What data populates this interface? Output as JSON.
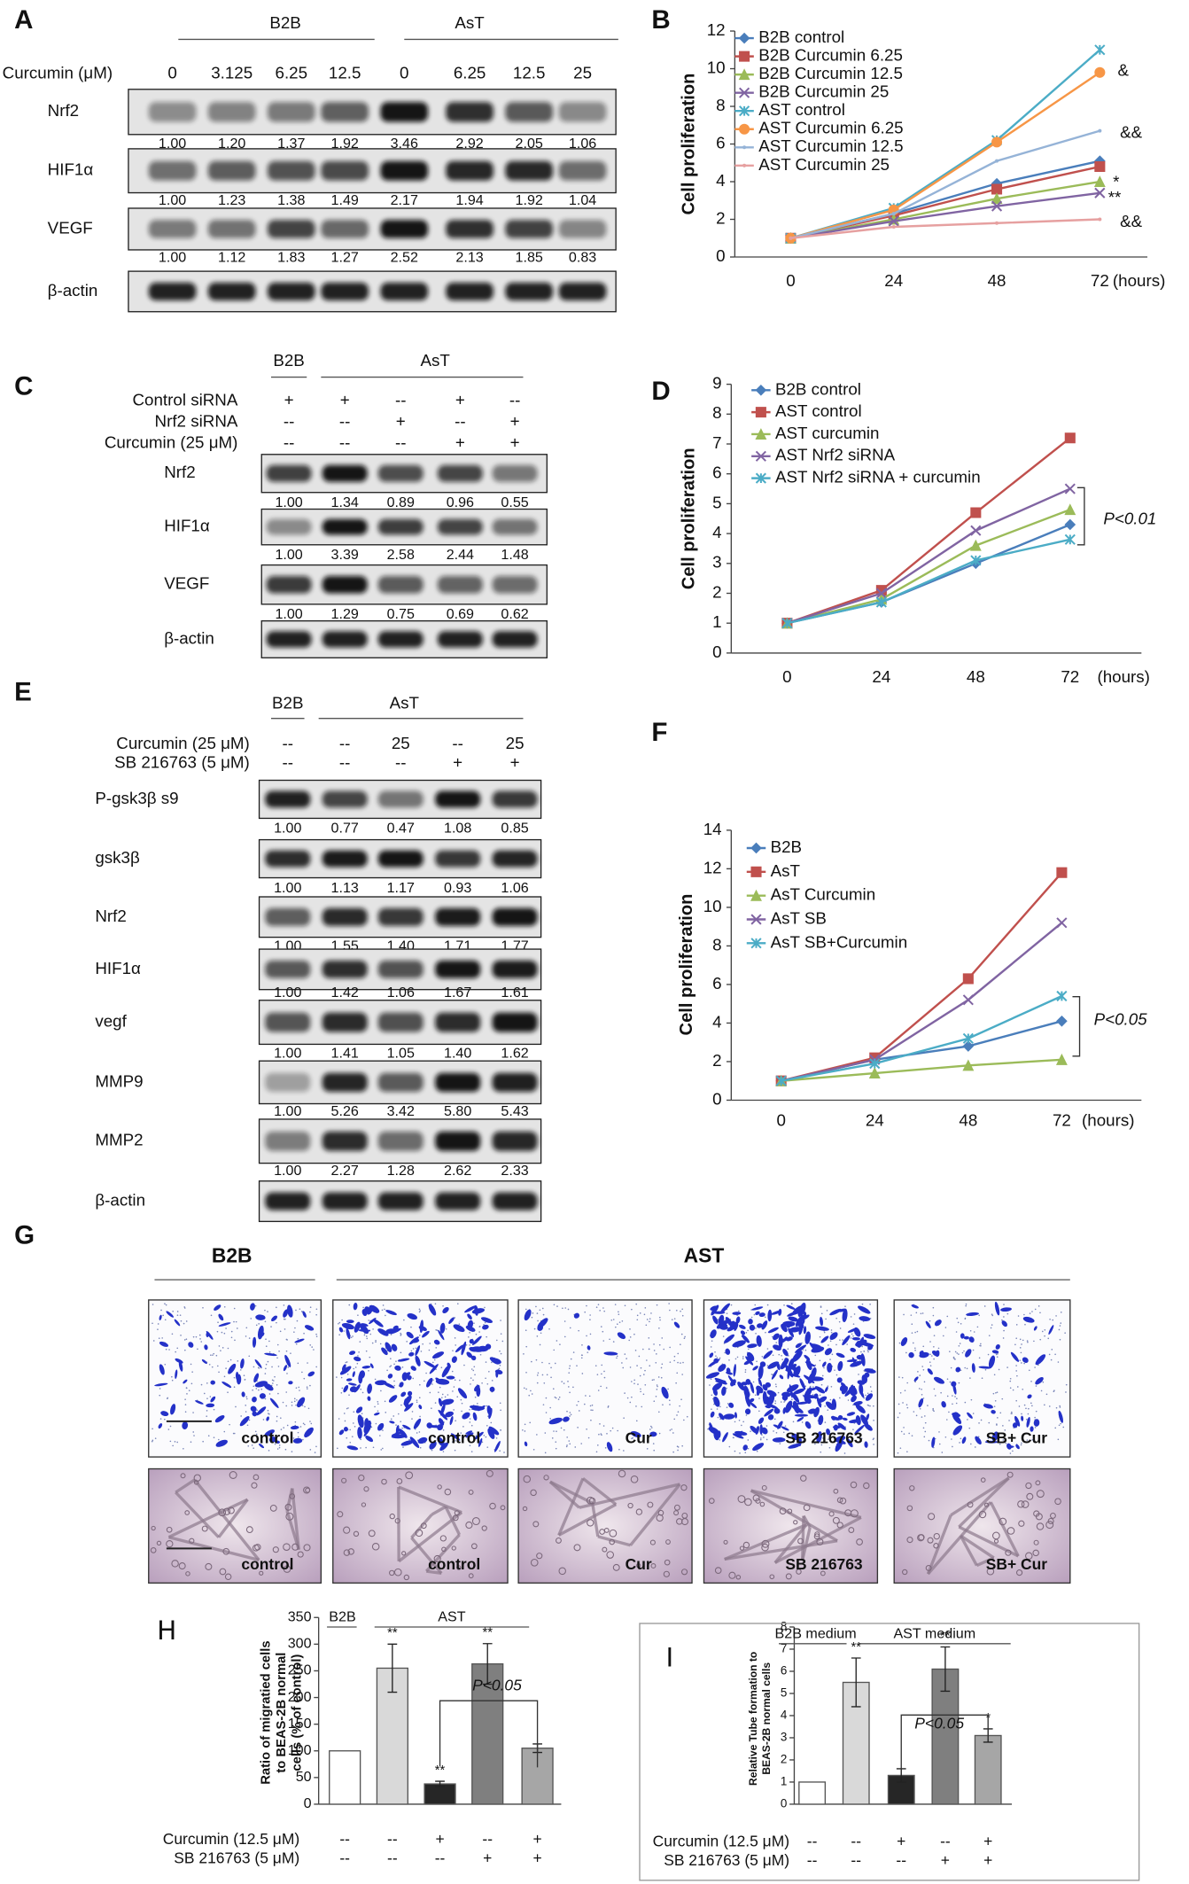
{
  "panel_labels": [
    "A",
    "B",
    "C",
    "D",
    "E",
    "F",
    "G",
    "H",
    "I"
  ],
  "blot_a": {
    "groups": [
      "B2B",
      "AsT"
    ],
    "conditions": [
      {
        "name": "Curcumin (μM)",
        "lanes": [
          "0",
          "3.125",
          "6.25",
          "12.5",
          "0",
          "6.25",
          "12.5",
          "25"
        ]
      }
    ],
    "rows": [
      {
        "name": "Nrf2",
        "quant": [
          "1.00",
          "1.20",
          "1.37",
          "1.92",
          "3.46",
          "2.92",
          "2.05",
          "1.06"
        ]
      },
      {
        "name": "HIF1α",
        "quant": [
          "1.00",
          "1.23",
          "1.38",
          "1.49",
          "2.17",
          "1.94",
          "1.92",
          "1.04"
        ]
      },
      {
        "name": "VEGF",
        "quant": [
          "1.00",
          "1.12",
          "1.83",
          "1.27",
          "2.52",
          "2.13",
          "1.85",
          "0.83"
        ]
      },
      {
        "name": "β-actin"
      }
    ]
  },
  "blot_c": {
    "groups": [
      "B2B",
      "AsT"
    ],
    "conditions": [
      {
        "name": "Control siRNA",
        "lanes": [
          "+",
          "+",
          "--",
          "+",
          "--"
        ]
      },
      {
        "name": "Nrf2 siRNA",
        "lanes": [
          "--",
          "--",
          "+",
          "--",
          "+"
        ]
      },
      {
        "name": "Curcumin (25 μM)",
        "lanes": [
          "--",
          "--",
          "--",
          "+",
          "+"
        ]
      }
    ],
    "rows": [
      {
        "name": "Nrf2",
        "quant": [
          "1.00",
          "1.34",
          "0.89",
          "0.96",
          "0.55"
        ]
      },
      {
        "name": "HIF1α",
        "quant": [
          "1.00",
          "3.39",
          "2.58",
          "2.44",
          "1.48"
        ]
      },
      {
        "name": "VEGF",
        "quant": [
          "1.00",
          "1.29",
          "0.75",
          "0.69",
          "0.62"
        ]
      },
      {
        "name": "β-actin"
      }
    ]
  },
  "blot_e": {
    "groups": [
      "B2B",
      "AsT"
    ],
    "conditions": [
      {
        "name": "Curcumin (25 μM)",
        "lanes": [
          "--",
          "--",
          "25",
          "--",
          "25"
        ]
      },
      {
        "name": "SB 216763 (5 μM)",
        "lanes": [
          "--",
          "--",
          "--",
          "+",
          "+"
        ]
      }
    ],
    "rows": [
      {
        "name": "P-gsk3β s9",
        "quant": [
          "1.00",
          "0.77",
          "0.47",
          "1.08",
          "0.85"
        ]
      },
      {
        "name": "gsk3β",
        "quant": [
          "1.00",
          "1.13",
          "1.17",
          "0.93",
          "1.06"
        ]
      },
      {
        "name": "Nrf2",
        "quant": [
          "1.00",
          "1.55",
          "1.40",
          "1.71",
          "1.77"
        ]
      },
      {
        "name": "HIF1α",
        "quant": [
          "1.00",
          "1.42",
          "1.06",
          "1.67",
          "1.61"
        ]
      },
      {
        "name": "vegf",
        "quant": [
          "1.00",
          "1.41",
          "1.05",
          "1.40",
          "1.62"
        ]
      },
      {
        "name": "MMP9",
        "quant": [
          "1.00",
          "5.26",
          "3.42",
          "5.80",
          "5.43"
        ]
      },
      {
        "name": "MMP2",
        "quant": [
          "1.00",
          "2.27",
          "1.28",
          "2.62",
          "2.33"
        ]
      },
      {
        "name": "β-actin"
      }
    ]
  },
  "micrographs": {
    "groups": [
      "B2B",
      "AST"
    ],
    "top": [
      "control",
      "control",
      "Cur",
      "SB 216763",
      "SB+ Cur"
    ],
    "bottom": [
      "control",
      "control",
      "Cur",
      "SB 216763",
      "SB+ Cur"
    ]
  },
  "chart_data": [
    {
      "type": "line",
      "y_label": "Cell proliferation",
      "x_unit": "(hours)",
      "categories": [
        "0",
        "24",
        "48",
        "72"
      ],
      "ylim": [
        0,
        12
      ],
      "yticks": [
        0,
        2,
        4,
        6,
        8,
        10,
        12
      ],
      "legend": "top-left",
      "series": [
        {
          "name": "B2B control",
          "color": "#4a7ebb",
          "marker": "diamond",
          "values": [
            1,
            2.3,
            3.9,
            5.1
          ]
        },
        {
          "name": "B2B Curcumin 6.25",
          "color": "#c0504d",
          "marker": "square",
          "values": [
            1,
            2.2,
            3.6,
            4.8
          ]
        },
        {
          "name": "B2B Curcumin 12.5",
          "color": "#9bbb59",
          "marker": "triangle",
          "values": [
            1,
            2.0,
            3.1,
            4.0
          ]
        },
        {
          "name": "B2B Curcumin 25",
          "color": "#8064a2",
          "marker": "x",
          "values": [
            1,
            1.9,
            2.7,
            3.4
          ]
        },
        {
          "name": "AST control",
          "color": "#4bacc6",
          "marker": "star",
          "values": [
            1,
            2.6,
            6.2,
            11.0
          ]
        },
        {
          "name": "AST Curcumin 6.25",
          "color": "#f79646",
          "marker": "circle",
          "values": [
            1,
            2.5,
            6.1,
            9.8
          ]
        },
        {
          "name": "AST Curcumin 12.5",
          "color": "#95b3d7",
          "marker": "none",
          "values": [
            1,
            2.3,
            5.1,
            6.7
          ]
        },
        {
          "name": "AST Curcumin 25",
          "color": "#e6a0a0",
          "marker": "none",
          "values": [
            1,
            1.6,
            1.8,
            2.0
          ]
        }
      ],
      "annotations": [
        "&",
        "&&",
        "*",
        "**",
        "&&"
      ]
    },
    {
      "type": "line",
      "y_label": "Cell proliferation",
      "x_unit": "(hours)",
      "categories": [
        "0",
        "24",
        "48",
        "72"
      ],
      "ylim": [
        0,
        9
      ],
      "yticks": [
        0,
        1,
        2,
        3,
        4,
        5,
        6,
        7,
        8,
        9
      ],
      "legend": "top-left",
      "series": [
        {
          "name": "B2B control",
          "color": "#4a7ebb",
          "marker": "diamond",
          "values": [
            1,
            1.7,
            3.0,
            4.3
          ]
        },
        {
          "name": "AST control",
          "color": "#c0504d",
          "marker": "square",
          "values": [
            1,
            2.1,
            4.7,
            7.2
          ]
        },
        {
          "name": "AST curcumin",
          "color": "#9bbb59",
          "marker": "triangle",
          "values": [
            1,
            1.8,
            3.6,
            4.8
          ]
        },
        {
          "name": "AST Nrf2 siRNA",
          "color": "#8064a2",
          "marker": "x",
          "values": [
            1,
            2.0,
            4.1,
            5.5
          ]
        },
        {
          "name": "AST Nrf2 siRNA + curcumin",
          "color": "#4bacc6",
          "marker": "star",
          "values": [
            1,
            1.7,
            3.1,
            3.8
          ]
        }
      ],
      "annotations": [
        "P<0.01"
      ]
    },
    {
      "type": "line",
      "y_label": "Cell proliferation",
      "x_unit": "(hours)",
      "categories": [
        "0",
        "24",
        "48",
        "72"
      ],
      "ylim": [
        0,
        14
      ],
      "yticks": [
        0,
        2,
        4,
        6,
        8,
        10,
        12,
        14
      ],
      "legend": "top-left",
      "series": [
        {
          "name": "B2B",
          "color": "#4a7ebb",
          "marker": "diamond",
          "values": [
            1,
            2.1,
            2.8,
            4.1
          ]
        },
        {
          "name": "AsT",
          "color": "#c0504d",
          "marker": "square",
          "values": [
            1,
            2.2,
            6.3,
            11.8
          ]
        },
        {
          "name": "AsT Curcumin",
          "color": "#9bbb59",
          "marker": "triangle",
          "values": [
            1,
            1.4,
            1.8,
            2.1
          ]
        },
        {
          "name": "AsT SB",
          "color": "#8064a2",
          "marker": "x",
          "values": [
            1,
            2.1,
            5.2,
            9.2
          ]
        },
        {
          "name": "AsT SB+Curcumin",
          "color": "#4bacc6",
          "marker": "star",
          "values": [
            1,
            1.9,
            3.2,
            5.4
          ]
        }
      ],
      "annotations": [
        "P<0.05"
      ]
    },
    {
      "type": "bar",
      "y_label": [
        "Ratio of migratied cells",
        "to BEAS-2B normal",
        "cells (% of control)"
      ],
      "groups": [
        "B2B",
        "AST"
      ],
      "ylim": [
        0,
        350
      ],
      "yticks": [
        0,
        50,
        100,
        150,
        200,
        250,
        300,
        350
      ],
      "values": [
        100,
        255,
        38,
        263,
        105
      ],
      "errors": [
        0,
        45,
        5,
        38,
        8
      ],
      "colors": [
        "#ffffff",
        "#d9d9d9",
        "#262626",
        "#7f7f7f",
        "#a6a6a6"
      ],
      "significance": [
        null,
        "**",
        "**",
        "**",
        null
      ],
      "conditions": [
        {
          "name": "Curcumin (12.5 μM)",
          "levels": [
            "--",
            "--",
            "+",
            "--",
            "+"
          ]
        },
        {
          "name": "SB 216763 (5 μM)",
          "levels": [
            "--",
            "--",
            "--",
            "+",
            "+"
          ]
        }
      ],
      "annotations": [
        "P<0.05"
      ]
    },
    {
      "type": "bar",
      "y_label": [
        "Relative Tube formation to",
        "BEAS-2B normal cells"
      ],
      "groups": [
        "B2B medium",
        "AST medium"
      ],
      "ylim": [
        0,
        8
      ],
      "yticks": [
        0,
        1,
        2,
        3,
        4,
        5,
        6,
        7,
        8
      ],
      "values": [
        1,
        5.5,
        1.3,
        6.1,
        3.1
      ],
      "errors": [
        0,
        1.1,
        0.3,
        1.0,
        0.3
      ],
      "colors": [
        "#ffffff",
        "#d9d9d9",
        "#262626",
        "#7f7f7f",
        "#a6a6a6"
      ],
      "significance": [
        null,
        "**",
        null,
        "**",
        "*"
      ],
      "conditions": [
        {
          "name": "Curcumin (12.5 μM)",
          "levels": [
            "--",
            "--",
            "+",
            "--",
            "+"
          ]
        },
        {
          "name": "SB 216763 (5 μM)",
          "levels": [
            "--",
            "--",
            "--",
            "+",
            "+"
          ]
        }
      ],
      "annotations": [
        "P<0.05"
      ]
    }
  ]
}
